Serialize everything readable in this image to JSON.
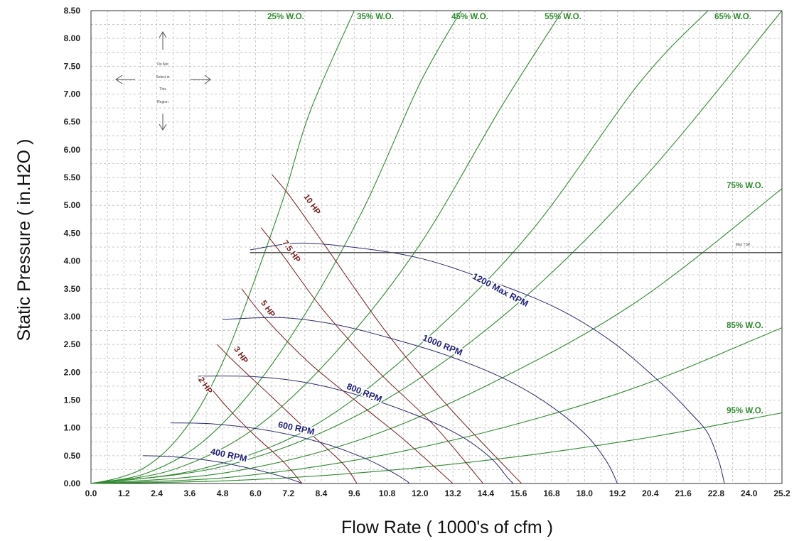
{
  "chart_data": {
    "type": "line",
    "xlabel": "Flow Rate ( 1000's of cfm )",
    "ylabel": "Static Pressure ( in.H2O )",
    "xlim": [
      0,
      25.2
    ],
    "ylim": [
      0,
      8.5
    ],
    "x_ticks": [
      "0.0",
      "1.2",
      "2.4",
      "3.6",
      "4.8",
      "6.0",
      "7.2",
      "8.4",
      "9.6",
      "10.8",
      "12.0",
      "13.2",
      "14.4",
      "15.6",
      "16.8",
      "18.0",
      "19.2",
      "20.4",
      "21.6",
      "22.8",
      "24.0",
      "25.2"
    ],
    "y_ticks": [
      "0.00",
      "0.50",
      "1.00",
      "1.50",
      "2.00",
      "2.50",
      "3.00",
      "3.50",
      "4.00",
      "4.50",
      "5.00",
      "5.50",
      "6.00",
      "6.50",
      "7.00",
      "7.50",
      "8.00",
      "8.50"
    ],
    "grid": true,
    "system_curves": [
      {
        "name": "25% W.O.",
        "x": [
          0,
          1,
          2,
          3,
          4,
          5,
          6,
          7,
          8,
          9.6
        ],
        "y": [
          0,
          0.1,
          0.3,
          0.72,
          1.4,
          2.4,
          3.7,
          5.1,
          6.7,
          8.5
        ]
      },
      {
        "name": "35% W.O.",
        "x": [
          0,
          2,
          4,
          6,
          8,
          10,
          12,
          13.5
        ],
        "y": [
          0,
          0.18,
          0.72,
          1.75,
          3.2,
          5.0,
          7.2,
          8.5
        ]
      },
      {
        "name": "45% W.O.",
        "x": [
          0,
          3,
          6,
          9,
          12,
          15,
          17.2
        ],
        "y": [
          0,
          0.25,
          1.0,
          2.4,
          4.3,
          6.8,
          8.5
        ]
      },
      {
        "name": "55% W.O.",
        "x": [
          0,
          4,
          8,
          12,
          16,
          20,
          22.5
        ],
        "y": [
          0,
          0.26,
          1.0,
          2.5,
          4.5,
          7.2,
          8.5
        ]
      },
      {
        "name": "65% W.O.",
        "x": [
          0,
          5,
          10,
          15,
          20,
          25.2
        ],
        "y": [
          0,
          0.33,
          1.3,
          3.0,
          5.4,
          8.5
        ]
      },
      {
        "name": "75% W.O.",
        "x": [
          0,
          5,
          10,
          15,
          20,
          25.2
        ],
        "y": [
          0,
          0.2,
          0.82,
          1.9,
          3.3,
          5.3
        ]
      },
      {
        "name": "85% W.O.",
        "x": [
          0,
          5,
          10,
          15,
          20,
          25.2
        ],
        "y": [
          0,
          0.11,
          0.45,
          1.0,
          1.75,
          2.8
        ]
      },
      {
        "name": "95% W.O.",
        "x": [
          0,
          5,
          10,
          15,
          20,
          25.2
        ],
        "y": [
          0,
          0.05,
          0.2,
          0.45,
          0.8,
          1.27
        ]
      }
    ],
    "rpm_curves": [
      {
        "name": "400 RPM",
        "x": [
          1.9,
          3.0,
          4.5,
          6.0,
          7.0,
          7.5,
          7.7
        ],
        "y": [
          0.5,
          0.48,
          0.4,
          0.25,
          0.12,
          0.04,
          0
        ]
      },
      {
        "name": "600 RPM",
        "x": [
          2.9,
          4.5,
          6.5,
          8.5,
          10.0,
          11.0,
          11.5,
          11.6
        ],
        "y": [
          1.09,
          1.07,
          0.95,
          0.72,
          0.45,
          0.2,
          0.05,
          0
        ]
      },
      {
        "name": "800 RPM",
        "x": [
          3.9,
          6.0,
          8.0,
          10.0,
          12.0,
          13.5,
          14.6,
          15.2,
          15.4
        ],
        "y": [
          1.93,
          1.92,
          1.8,
          1.55,
          1.2,
          0.85,
          0.45,
          0.1,
          0
        ]
      },
      {
        "name": "1000 RPM",
        "x": [
          4.8,
          7.0,
          9.0,
          11.0,
          13.0,
          15.0,
          16.6,
          18.0,
          18.8,
          19.2
        ],
        "y": [
          2.95,
          2.98,
          2.85,
          2.6,
          2.3,
          1.9,
          1.45,
          0.9,
          0.4,
          0
        ]
      },
      {
        "name": "1200 Max RPM",
        "x": [
          5.8,
          7.5,
          9.5,
          12.0,
          14.5,
          17.0,
          19.0,
          20.8,
          21.9,
          22.5,
          22.9,
          23.1
        ],
        "y": [
          4.2,
          4.32,
          4.25,
          4.05,
          3.65,
          3.15,
          2.55,
          1.8,
          1.25,
          0.9,
          0.4,
          0
        ]
      }
    ],
    "hp_curves": [
      {
        "name": "2 HP",
        "x": [
          3.9,
          4.3,
          5.0,
          6.0,
          7.0,
          7.7
        ],
        "y": [
          1.9,
          1.75,
          1.35,
          0.85,
          0.4,
          0
        ]
      },
      {
        "name": "3 HP",
        "x": [
          4.6,
          5.2,
          6.5,
          8.0,
          9.2,
          9.7
        ],
        "y": [
          2.5,
          2.2,
          1.6,
          0.9,
          0.35,
          0
        ]
      },
      {
        "name": "5 HP",
        "x": [
          5.5,
          6.3,
          8.0,
          10.0,
          11.5,
          13.2
        ],
        "y": [
          3.5,
          3.0,
          2.15,
          1.35,
          0.75,
          0
        ]
      },
      {
        "name": "7.5 HP",
        "x": [
          6.2,
          7.0,
          8.5,
          10.5,
          12.5,
          14.3
        ],
        "y": [
          4.6,
          4.1,
          3.1,
          2.0,
          1.05,
          0
        ]
      },
      {
        "name": "10 HP",
        "x": [
          6.6,
          7.2,
          8.5,
          10.8,
          13.0,
          15.7
        ],
        "y": [
          5.55,
          5.2,
          4.3,
          2.7,
          1.4,
          0
        ]
      }
    ],
    "max_tsp": {
      "name": "Max TSP",
      "y": 4.15,
      "x_start": 5.8,
      "x_end": 25.2
    },
    "annotation": {
      "lines": [
        "Do Not",
        "Select in",
        "This",
        "Region"
      ]
    },
    "colors": {
      "system": "#2e8b2e",
      "rpm": "#2b2b6e",
      "hp": "#7a1b1b",
      "max_tsp": "#444444",
      "grid": "#c8c8c8"
    }
  }
}
